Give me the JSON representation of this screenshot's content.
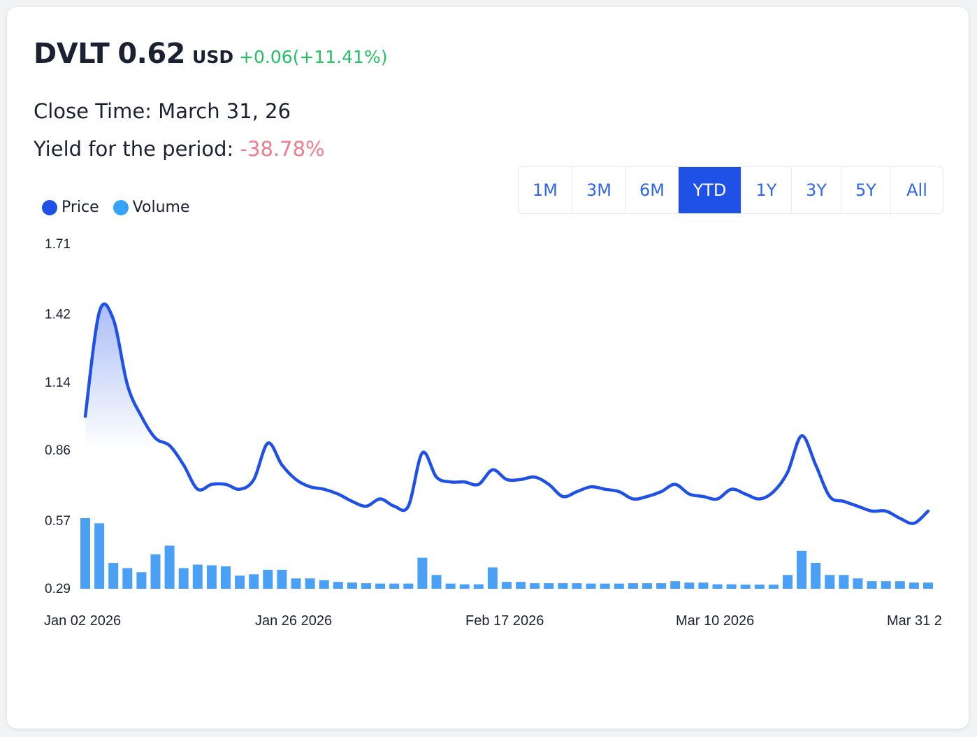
{
  "header": {
    "ticker": "DVLT",
    "price": "0.62",
    "currency": "USD",
    "change": "+0.06(+11.41%)",
    "close_time": "Close Time: March 31, 26",
    "yield_label": "Yield for the period: ",
    "yield_value": "-38.78%"
  },
  "periods": [
    {
      "label": "1M",
      "active": false
    },
    {
      "label": "3M",
      "active": false
    },
    {
      "label": "6M",
      "active": false
    },
    {
      "label": "YTD",
      "active": true
    },
    {
      "label": "1Y",
      "active": false
    },
    {
      "label": "3Y",
      "active": false
    },
    {
      "label": "5Y",
      "active": false
    },
    {
      "label": "All",
      "active": false
    }
  ],
  "colors": {
    "price_line": "#1f51e6",
    "volume_bar": "#4aa0f5",
    "legend_price": "#1f51e6",
    "legend_volume": "#35a3f7"
  },
  "chart_data": {
    "type": "line",
    "series": [
      {
        "name": "Price"
      },
      {
        "name": "Volume"
      }
    ],
    "y_ticks": [
      "1.71",
      "1.42",
      "1.14",
      "0.86",
      "0.57",
      "0.29"
    ],
    "ylim": [
      0.29,
      1.71
    ],
    "x_tick_labels": [
      "Jan 02 2026",
      "Jan 26 2026",
      "Feb 17 2026",
      "Mar 10 2026",
      "Mar 31 2"
    ],
    "price": [
      1.0,
      1.43,
      1.4,
      1.13,
      1.0,
      0.91,
      0.88,
      0.8,
      0.7,
      0.72,
      0.72,
      0.7,
      0.74,
      0.89,
      0.8,
      0.74,
      0.71,
      0.7,
      0.68,
      0.65,
      0.63,
      0.66,
      0.63,
      0.63,
      0.85,
      0.75,
      0.73,
      0.73,
      0.72,
      0.78,
      0.74,
      0.74,
      0.75,
      0.72,
      0.67,
      0.69,
      0.71,
      0.7,
      0.69,
      0.66,
      0.67,
      0.69,
      0.72,
      0.68,
      0.67,
      0.66,
      0.7,
      0.68,
      0.66,
      0.69,
      0.77,
      0.92,
      0.8,
      0.67,
      0.65,
      0.63,
      0.61,
      0.61,
      0.58,
      0.56,
      0.61
    ],
    "volume": [
      0.205,
      0.19,
      0.075,
      0.06,
      0.048,
      0.1,
      0.125,
      0.06,
      0.07,
      0.068,
      0.065,
      0.038,
      0.042,
      0.055,
      0.055,
      0.03,
      0.03,
      0.025,
      0.02,
      0.018,
      0.016,
      0.015,
      0.015,
      0.015,
      0.09,
      0.04,
      0.015,
      0.013,
      0.013,
      0.062,
      0.02,
      0.02,
      0.016,
      0.016,
      0.016,
      0.016,
      0.015,
      0.015,
      0.015,
      0.016,
      0.016,
      0.016,
      0.022,
      0.018,
      0.018,
      0.013,
      0.013,
      0.012,
      0.012,
      0.012,
      0.04,
      0.11,
      0.075,
      0.04,
      0.04,
      0.03,
      0.022,
      0.022,
      0.022,
      0.018,
      0.018
    ]
  }
}
